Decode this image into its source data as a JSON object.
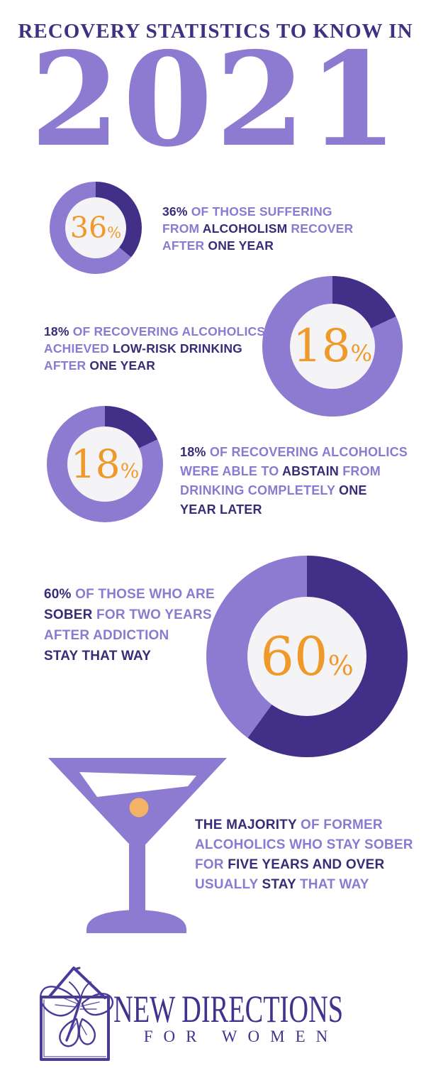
{
  "palette": {
    "light_purple": "#8C7BD0",
    "dark_purple": "#412F88",
    "dark_text": "#3A2B78",
    "light_text": "#897BD2",
    "accent_orange": "#F0992B",
    "olive_orange": "#F4B266",
    "donut_hole": "#F4F3F5",
    "logo_indigo": "#4A3A99",
    "background": "#FFFFFF"
  },
  "header": {
    "kicker": "RECOVERY STATISTICS TO KNOW IN",
    "year": "2021"
  },
  "chart_data": [
    {
      "type": "pie",
      "variant": "donut",
      "title": "36% of those suffering from alcoholism recover after one year",
      "labels": [
        "recover",
        "remainder"
      ],
      "values": [
        36,
        64
      ],
      "value": 36,
      "center_number": "36",
      "center_sign": "%",
      "colors": {
        "value": "#412F88",
        "remainder": "#8C7BD0"
      },
      "legend": "none",
      "start_angle_deg": 0
    },
    {
      "type": "pie",
      "variant": "donut",
      "title": "18% of recovering alcoholics achieved low-risk drinking after one year",
      "labels": [
        "low-risk drinking",
        "remainder"
      ],
      "values": [
        18,
        82
      ],
      "value": 18,
      "center_number": "18",
      "center_sign": "%",
      "colors": {
        "value": "#412F88",
        "remainder": "#8C7BD0"
      },
      "legend": "none",
      "start_angle_deg": 0
    },
    {
      "type": "pie",
      "variant": "donut",
      "title": "18% of recovering alcoholics were able to abstain from drinking completely one year later",
      "labels": [
        "abstain completely",
        "remainder"
      ],
      "values": [
        18,
        82
      ],
      "value": 18,
      "center_number": "18",
      "center_sign": "%",
      "colors": {
        "value": "#412F88",
        "remainder": "#8C7BD0"
      },
      "legend": "none",
      "start_angle_deg": 0
    },
    {
      "type": "pie",
      "variant": "donut",
      "title": "60% of those who are sober for two years after addiction stay that way",
      "labels": [
        "stay sober",
        "remainder"
      ],
      "values": [
        60,
        40
      ],
      "value": 60,
      "center_number": "60",
      "center_sign": "%",
      "colors": {
        "value": "#412F88",
        "remainder": "#8C7BD0"
      },
      "legend": "none",
      "start_angle_deg": 0
    }
  ],
  "stats": [
    {
      "lines": [
        [
          {
            "text": "36%",
            "tone": "dark"
          },
          {
            "text": " OF THOSE SUFFERING",
            "tone": "light"
          }
        ],
        [
          {
            "text": "FROM ",
            "tone": "light"
          },
          {
            "text": "ALCOHOLISM",
            "tone": "dark"
          },
          {
            "text": " RECOVER",
            "tone": "light"
          }
        ],
        [
          {
            "text": "AFTER ",
            "tone": "light"
          },
          {
            "text": "ONE YEAR",
            "tone": "dark"
          }
        ]
      ]
    },
    {
      "lines": [
        [
          {
            "text": "18%",
            "tone": "dark"
          },
          {
            "text": " OF RECOVERING ALCOHOLICS",
            "tone": "light"
          }
        ],
        [
          {
            "text": "ACHIEVED ",
            "tone": "light"
          },
          {
            "text": "LOW-RISK DRINKING",
            "tone": "dark"
          }
        ],
        [
          {
            "text": "AFTER ",
            "tone": "light"
          },
          {
            "text": "ONE YEAR",
            "tone": "dark"
          }
        ]
      ]
    },
    {
      "lines": [
        [
          {
            "text": "18%",
            "tone": "dark"
          },
          {
            "text": " OF RECOVERING ALCOHOLICS",
            "tone": "light"
          }
        ],
        [
          {
            "text": "WERE ABLE TO ",
            "tone": "light"
          },
          {
            "text": "ABSTAIN",
            "tone": "dark"
          },
          {
            "text": " FROM",
            "tone": "light"
          }
        ],
        [
          {
            "text": "DRINKING COMPLETELY ",
            "tone": "light"
          },
          {
            "text": "ONE",
            "tone": "dark"
          }
        ],
        [
          {
            "text": "YEAR LATER",
            "tone": "dark"
          }
        ]
      ]
    },
    {
      "lines": [
        [
          {
            "text": "60%",
            "tone": "dark"
          },
          {
            "text": " OF THOSE WHO ARE",
            "tone": "light"
          }
        ],
        [
          {
            "text": "SOBER",
            "tone": "dark"
          },
          {
            "text": " FOR TWO YEARS",
            "tone": "light"
          }
        ],
        [
          {
            "text": "AFTER ADDICTION",
            "tone": "light"
          }
        ],
        [
          {
            "text": "STAY THAT WAY",
            "tone": "dark"
          }
        ]
      ]
    },
    {
      "lines": [
        [
          {
            "text": "THE MAJORITY",
            "tone": "dark"
          },
          {
            "text": " OF FORMER",
            "tone": "light"
          }
        ],
        [
          {
            "text": "ALCOHOLICS WHO STAY SOBER",
            "tone": "light"
          }
        ],
        [
          {
            "text": "FOR ",
            "tone": "light"
          },
          {
            "text": "FIVE YEARS AND OVER",
            "tone": "dark"
          }
        ],
        [
          {
            "text": "USUALLY ",
            "tone": "light"
          },
          {
            "text": "STAY",
            "tone": "dark"
          },
          {
            "text": " THAT WAY",
            "tone": "light"
          }
        ]
      ]
    }
  ],
  "icons": {
    "martini": "martini-glass-icon",
    "logo": "house-butterfly-logo-icon"
  },
  "footer": {
    "brand_line1": "NEW DIRECTIONS",
    "brand_line2": "FOR WOMEN"
  }
}
